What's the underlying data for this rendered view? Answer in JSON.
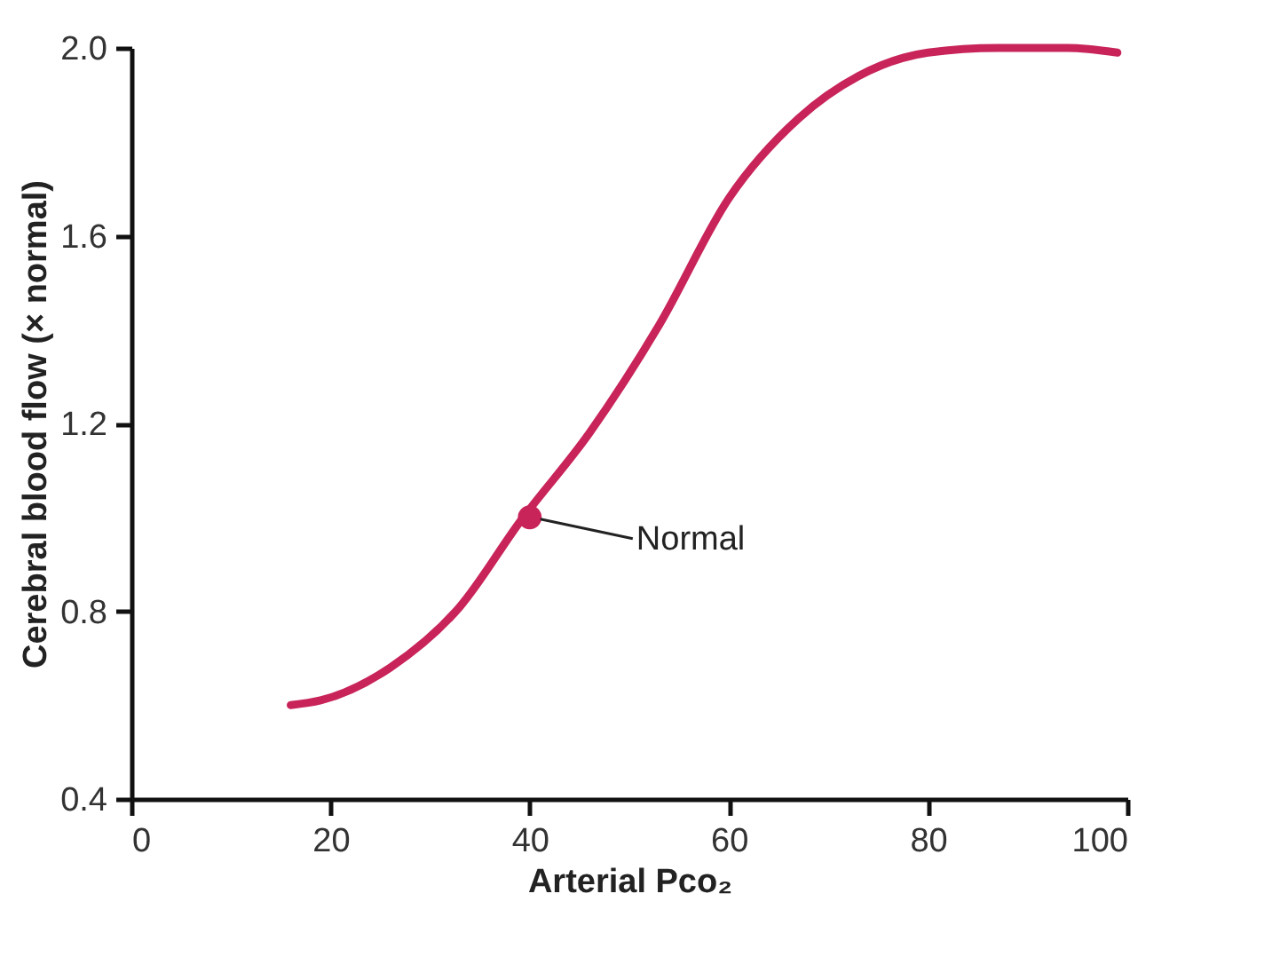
{
  "chart_data": {
    "type": "line",
    "xlabel": "Arterial Pco₂",
    "ylabel": "Cerebral blood flow (× normal)",
    "series": [
      {
        "color": "#c8245a",
        "x": [
          16,
          19,
          26,
          33,
          39,
          46,
          53,
          60,
          67,
          73,
          80,
          87,
          94,
          99
        ],
        "values": [
          0.6,
          0.61,
          0.68,
          0.81,
          0.99,
          1.18,
          1.41,
          1.68,
          1.85,
          1.94,
          1.99,
          2.0,
          2.0,
          1.99
        ]
      },
      {
        "type": "scatter",
        "color": "#c8245a",
        "x": [
          40
        ],
        "values": [
          1.0
        ]
      }
    ],
    "annotations": [
      {
        "text": "Normal",
        "x": 40,
        "y": 1.0
      }
    ],
    "xlim": [
      0,
      100
    ],
    "xticks": [
      0,
      20,
      40,
      60,
      80,
      100
    ],
    "ylim": [
      0.4,
      2.0
    ],
    "yticks": [
      0.4,
      0.8,
      1.2,
      1.6,
      {
        "value": 2,
        "label": "2.0"
      }
    ],
    "grid": false,
    "line_style": "solid"
  }
}
